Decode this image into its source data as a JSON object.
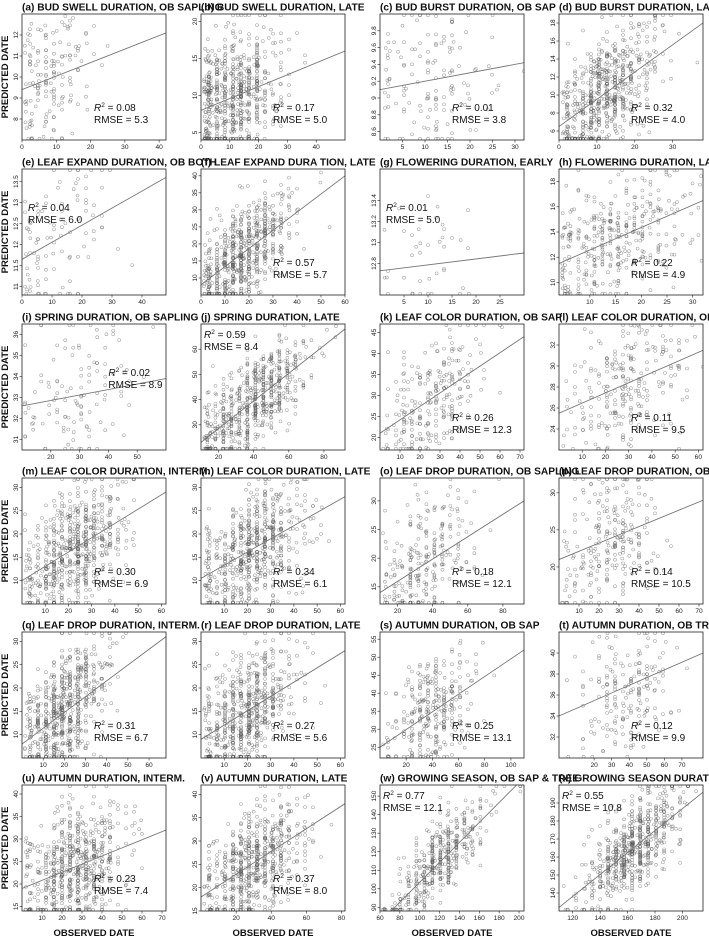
{
  "figure": {
    "ylabel": "PREDICTED DATE",
    "xlabel": "OBSERVED DATE"
  },
  "chart_data": [
    {
      "id": "a",
      "type": "scatter",
      "title": "(a) BUD SWELL DURATION, OB SAPLING",
      "xlim": [
        0,
        42
      ],
      "ylim": [
        7,
        13
      ],
      "xticks": [
        0,
        10,
        20,
        30,
        40
      ],
      "yticks": [
        8,
        9,
        10,
        11,
        12
      ],
      "r2": "0.08",
      "rmse": "RMSE = 5.3",
      "stat_pos": "bottom-right",
      "trend": [
        [
          0,
          9.4
        ],
        [
          42,
          12.1
        ]
      ],
      "cloud": {
        "n": 160,
        "xc": 8,
        "xs": 6,
        "cor": 0.35
      }
    },
    {
      "id": "b",
      "type": "scatter",
      "title": "(b) BUD SWELL DURATION, LATE",
      "xlim": [
        0,
        50
      ],
      "ylim": [
        4,
        21
      ],
      "xticks": [
        0,
        10,
        20,
        30,
        40
      ],
      "yticks": [
        5,
        10,
        15,
        20
      ],
      "r2": "0.17",
      "rmse": "RMSE = 5.0",
      "stat_pos": "bottom-right",
      "trend": [
        [
          0,
          8.0
        ],
        [
          50,
          16.0
        ]
      ],
      "cloud": {
        "n": 650,
        "xc": 12,
        "xs": 8,
        "cor": 0.4
      }
    },
    {
      "id": "c",
      "type": "scatter",
      "title": "(c) BUD BURST DURATION, OB SAP",
      "xlim": [
        0,
        32
      ],
      "ylim": [
        8.5,
        10
      ],
      "xticks": [
        5,
        10,
        15,
        20,
        25,
        30
      ],
      "yticks": [
        8.6,
        8.8,
        9.0,
        9.2,
        9.4,
        9.6,
        9.8
      ],
      "r2": "0.01",
      "rmse": "RMSE = 3.8",
      "stat_pos": "bottom-right",
      "trend": [
        [
          0,
          9.1
        ],
        [
          32,
          9.42
        ]
      ],
      "cloud": {
        "n": 140,
        "xc": 12,
        "xs": 7,
        "cor": 0.1
      }
    },
    {
      "id": "d",
      "type": "scatter",
      "title": "(d) BUD BURST DURATION, LATE",
      "xlim": [
        0,
        38
      ],
      "ylim": [
        5,
        19
      ],
      "xticks": [
        0,
        10,
        20,
        30
      ],
      "yticks": [
        6,
        8,
        10,
        12,
        14,
        16,
        18
      ],
      "r2": "0.32",
      "rmse": "RMSE = 4.0",
      "stat_pos": "bottom-right",
      "trend": [
        [
          0,
          6.5
        ],
        [
          38,
          18.0
        ]
      ],
      "cloud": {
        "n": 650,
        "xc": 12,
        "xs": 7,
        "cor": 0.55
      }
    },
    {
      "id": "e",
      "type": "scatter",
      "title": "(e) LEAF EXPAND DURATION, OB BOTH",
      "xlim": [
        0,
        48
      ],
      "ylim": [
        10.8,
        13.8
      ],
      "xticks": [
        0,
        10,
        20,
        30,
        40
      ],
      "yticks": [
        11.0,
        11.5,
        12.0,
        12.5,
        13.0,
        13.5
      ],
      "r2": "0.04",
      "rmse": "RMSE = 6.0",
      "stat_pos": "middle-left",
      "trend": [
        [
          0,
          11.65
        ],
        [
          48,
          13.6
        ]
      ],
      "cloud": {
        "n": 100,
        "xc": 12,
        "xs": 8,
        "cor": 0.2
      }
    },
    {
      "id": "f",
      "type": "scatter",
      "title": "(f) LEAF EXPAND DURA  TION, LATE",
      "xlim": [
        0,
        60
      ],
      "ylim": [
        5,
        42
      ],
      "xticks": [
        0,
        10,
        20,
        30,
        40,
        50,
        60
      ],
      "yticks": [
        10,
        15,
        20,
        25,
        30,
        35,
        40
      ],
      "r2": "0.57",
      "rmse": "RMSE = 5.7",
      "stat_pos": "bottom-right",
      "trend": [
        [
          0,
          8
        ],
        [
          60,
          40
        ]
      ],
      "cloud": {
        "n": 650,
        "xc": 18,
        "xs": 10,
        "cor": 0.75
      }
    },
    {
      "id": "g",
      "type": "scatter",
      "title": "(g) FLOWERING DURATION, EARLY",
      "xlim": [
        0,
        30
      ],
      "ylim": [
        12.5,
        13.7
      ],
      "xticks": [
        5,
        10,
        15,
        20,
        25
      ],
      "yticks": [
        12.8,
        13.0,
        13.2,
        13.4
      ],
      "r2": "0.01",
      "rmse": "RMSE = 5.0",
      "stat_pos": "middle-left",
      "trend": [
        [
          0,
          12.73
        ],
        [
          30,
          12.9
        ]
      ],
      "cloud": {
        "n": 40,
        "xc": 12,
        "xs": 6,
        "cor": 0.1
      }
    },
    {
      "id": "h",
      "type": "scatter",
      "title": "(h) FLOWERING DURATION, LATE",
      "xlim": [
        4,
        32
      ],
      "ylim": [
        9,
        19
      ],
      "xticks": [
        10,
        15,
        20,
        25,
        30
      ],
      "yticks": [
        10,
        12,
        14,
        16,
        18
      ],
      "r2": "0.22",
      "rmse": "RMSE = 4.9",
      "stat_pos": "bottom-right",
      "trend": [
        [
          4,
          11.5
        ],
        [
          32,
          16.5
        ]
      ],
      "cloud": {
        "n": 380,
        "xc": 15,
        "xs": 7,
        "cor": 0.45
      }
    },
    {
      "id": "i",
      "type": "scatter",
      "title": "(i) SPRING DURATION, OB SAPLING",
      "xlim": [
        10,
        60
      ],
      "ylim": [
        30.5,
        36.5
      ],
      "xticks": [
        20,
        30,
        40,
        50
      ],
      "yticks": [
        31,
        32,
        33,
        34,
        35,
        36
      ],
      "r2": "0.02",
      "rmse": "RMSE = 8.9",
      "stat_pos": "middle-right",
      "trend": [
        [
          10,
          32.6
        ],
        [
          60,
          33.9
        ]
      ],
      "cloud": {
        "n": 120,
        "xc": 30,
        "xs": 10,
        "cor": 0.15
      }
    },
    {
      "id": "j",
      "type": "scatter",
      "title": "(j) SPRING DURATION, LATE",
      "xlim": [
        10,
        92
      ],
      "ylim": [
        20,
        70
      ],
      "xticks": [
        20,
        40,
        60,
        80
      ],
      "yticks": [
        30,
        40,
        50,
        60
      ],
      "r2": "0.59",
      "rmse": "RMSE = 8.4",
      "stat_pos": "top-left",
      "trend": [
        [
          10,
          23
        ],
        [
          92,
          68
        ]
      ],
      "cloud": {
        "n": 650,
        "xc": 40,
        "xs": 16,
        "cor": 0.78
      }
    },
    {
      "id": "k",
      "type": "scatter",
      "title": "(k) LEAF COLOR DURATION, OB SAP",
      "xlim": [
        0,
        72
      ],
      "ylim": [
        17,
        47
      ],
      "xticks": [
        10,
        20,
        30,
        40,
        50,
        60,
        70
      ],
      "yticks": [
        20,
        25,
        30,
        35,
        40,
        45
      ],
      "r2": "0.26",
      "rmse": "RMSE = 12.3",
      "stat_pos": "bottom-right",
      "trend": [
        [
          0,
          21
        ],
        [
          72,
          44
        ]
      ],
      "cloud": {
        "n": 260,
        "xc": 25,
        "xs": 12,
        "cor": 0.5
      }
    },
    {
      "id": "l",
      "type": "scatter",
      "title": "(l) LEAF COLOR DURATION, OB TREE",
      "xlim": [
        0,
        62
      ],
      "ylim": [
        22,
        34
      ],
      "xticks": [
        10,
        20,
        30,
        40,
        50,
        60
      ],
      "yticks": [
        24,
        26,
        28,
        30,
        32
      ],
      "r2": "0.11",
      "rmse": "RMSE = 9.5",
      "stat_pos": "bottom-right",
      "trend": [
        [
          0,
          25.5
        ],
        [
          62,
          31.5
        ]
      ],
      "cloud": {
        "n": 260,
        "xc": 28,
        "xs": 12,
        "cor": 0.33
      }
    },
    {
      "id": "m",
      "type": "scatter",
      "title": "(m) LEAF COLOR DURATION, INTERM.",
      "xlim": [
        0,
        62
      ],
      "ylim": [
        5,
        32
      ],
      "xticks": [
        10,
        20,
        30,
        40,
        50,
        60
      ],
      "yticks": [
        10,
        15,
        20,
        25,
        30
      ],
      "r2": "0.30",
      "rmse": "RMSE = 6.9",
      "stat_pos": "bottom-right",
      "trend": [
        [
          0,
          10
        ],
        [
          62,
          29
        ]
      ],
      "cloud": {
        "n": 650,
        "xc": 22,
        "xs": 11,
        "cor": 0.55
      }
    },
    {
      "id": "n",
      "type": "scatter",
      "title": "(n) LEAF COLOR DURATION, LATE",
      "xlim": [
        0,
        62
      ],
      "ylim": [
        5,
        32
      ],
      "xticks": [
        10,
        20,
        30,
        40,
        50,
        60
      ],
      "yticks": [
        10,
        15,
        20,
        25,
        30
      ],
      "r2": "0.34",
      "rmse": "RMSE = 6.1",
      "stat_pos": "bottom-right",
      "trend": [
        [
          0,
          10.5
        ],
        [
          62,
          28
        ]
      ],
      "cloud": {
        "n": 650,
        "xc": 22,
        "xs": 11,
        "cor": 0.58
      }
    },
    {
      "id": "o",
      "type": "scatter",
      "title": "(o) LEAF DROP DURATION, OB SAPLING",
      "xlim": [
        10,
        92
      ],
      "ylim": [
        12,
        34
      ],
      "xticks": [
        20,
        40,
        60,
        80
      ],
      "yticks": [
        15,
        20,
        25,
        30
      ],
      "r2": "0.18",
      "rmse": "RMSE = 12.1",
      "stat_pos": "bottom-right",
      "trend": [
        [
          10,
          14
        ],
        [
          92,
          30
        ]
      ],
      "cloud": {
        "n": 260,
        "xc": 35,
        "xs": 14,
        "cor": 0.42
      }
    },
    {
      "id": "p",
      "type": "scatter",
      "title": "(p) LEAF DROP DURATION, OB TREE",
      "xlim": [
        0,
        72
      ],
      "ylim": [
        15,
        32
      ],
      "xticks": [
        10,
        20,
        30,
        40,
        50,
        60,
        70
      ],
      "yticks": [
        20,
        25,
        30
      ],
      "r2": "0.14",
      "rmse": "RMSE = 10.5",
      "stat_pos": "bottom-right",
      "trend": [
        [
          0,
          21
        ],
        [
          72,
          29
        ]
      ],
      "cloud": {
        "n": 260,
        "xc": 25,
        "xs": 12,
        "cor": 0.38
      }
    },
    {
      "id": "q",
      "type": "scatter",
      "title": "(q) LEAF DROP DURATION, INTERM.",
      "xlim": [
        0,
        68
      ],
      "ylim": [
        5,
        32
      ],
      "xticks": [
        10,
        20,
        30,
        40,
        50,
        60
      ],
      "yticks": [
        10,
        15,
        20,
        25,
        30
      ],
      "r2": "0.31",
      "rmse": "RMSE = 6.7",
      "stat_pos": "bottom-right",
      "trend": [
        [
          0,
          8
        ],
        [
          68,
          31
        ]
      ],
      "cloud": {
        "n": 650,
        "xc": 20,
        "xs": 10,
        "cor": 0.56
      }
    },
    {
      "id": "r",
      "type": "scatter",
      "title": "(r) LEAF DROP DURATION, LATE",
      "xlim": [
        0,
        62
      ],
      "ylim": [
        5,
        32
      ],
      "xticks": [
        10,
        20,
        30,
        40,
        50,
        60
      ],
      "yticks": [
        10,
        15,
        20,
        25,
        30
      ],
      "r2": "0.27",
      "rmse": "RMSE = 5.6",
      "stat_pos": "bottom-right",
      "trend": [
        [
          0,
          9
        ],
        [
          62,
          28
        ]
      ],
      "cloud": {
        "n": 650,
        "xc": 20,
        "xs": 10,
        "cor": 0.52
      }
    },
    {
      "id": "s",
      "type": "scatter",
      "title": "(s) AUTUMN DURATION, OB SAP",
      "xlim": [
        0,
        110
      ],
      "ylim": [
        22,
        57
      ],
      "xticks": [
        20,
        40,
        60,
        80,
        100
      ],
      "yticks": [
        25,
        30,
        35,
        40,
        45,
        50,
        55
      ],
      "r2": "0.25",
      "rmse": "RMSE = 13.1",
      "stat_pos": "bottom-right",
      "trend": [
        [
          0,
          25
        ],
        [
          110,
          52
        ]
      ],
      "cloud": {
        "n": 320,
        "xc": 40,
        "xs": 16,
        "cor": 0.5
      }
    },
    {
      "id": "t",
      "type": "scatter",
      "title": "(t) AUTUMN DURATION, OB TREE",
      "xlim": [
        0,
        82
      ],
      "ylim": [
        30,
        42
      ],
      "xticks": [
        20,
        30,
        40,
        50,
        60,
        70
      ],
      "yticks": [
        32,
        34,
        36,
        38,
        40
      ],
      "r2": "0.12",
      "rmse": "RMSE = 9.9",
      "stat_pos": "bottom-right",
      "trend": [
        [
          0,
          34
        ],
        [
          82,
          40
        ]
      ],
      "cloud": {
        "n": 200,
        "xc": 40,
        "xs": 14,
        "cor": 0.35
      }
    },
    {
      "id": "u",
      "type": "scatter",
      "title": "(u) AUTUMN DURATION, INTERM.",
      "xlim": [
        0,
        72
      ],
      "ylim": [
        14,
        42
      ],
      "xticks": [
        10,
        20,
        30,
        40,
        50,
        60,
        70
      ],
      "yticks": [
        15,
        20,
        25,
        30,
        35,
        40
      ],
      "r2": "0.23",
      "rmse": "RMSE = 7.4",
      "stat_pos": "bottom-right",
      "trend": [
        [
          0,
          19
        ],
        [
          72,
          32
        ]
      ],
      "cloud": {
        "n": 650,
        "xc": 25,
        "xs": 12,
        "cor": 0.48
      }
    },
    {
      "id": "v",
      "type": "scatter",
      "title": "(v) AUTUMN DURATION, LATE",
      "xlim": [
        0,
        82
      ],
      "ylim": [
        15,
        42
      ],
      "xticks": [
        20,
        40,
        60,
        80
      ],
      "yticks": [
        15,
        20,
        25,
        30,
        35,
        40
      ],
      "r2": "0.37",
      "rmse": "RMSE = 8.0",
      "stat_pos": "bottom-right",
      "trend": [
        [
          0,
          18
        ],
        [
          82,
          38
        ]
      ],
      "cloud": {
        "n": 650,
        "xc": 30,
        "xs": 14,
        "cor": 0.6
      }
    },
    {
      "id": "w",
      "type": "scatter",
      "title": "(w) GROWING SEASON, OB SAP & TREE",
      "xlim": [
        60,
        205
      ],
      "ylim": [
        88,
        156
      ],
      "xticks": [
        60,
        80,
        100,
        120,
        140,
        160,
        180,
        200
      ],
      "yticks": [
        90,
        100,
        110,
        120,
        130,
        140,
        150
      ],
      "r2": "0.77",
      "rmse": "RMSE = 12.1",
      "stat_pos": "top-left",
      "trend": [
        [
          60,
          82
        ],
        [
          205,
          160
        ]
      ],
      "cloud": {
        "n": 450,
        "xc": 120,
        "xs": 25,
        "cor": 0.85
      }
    },
    {
      "id": "x",
      "type": "scatter",
      "title": "(x) GROWING SEASON DURATION, LATE",
      "xlim": [
        110,
        215
      ],
      "ylim": [
        130,
        200
      ],
      "xticks": [
        120,
        140,
        160,
        180,
        200
      ],
      "yticks": [
        140,
        150,
        160,
        170,
        180,
        190
      ],
      "r2": "0.55",
      "rmse": "RMSE = 10.8",
      "stat_pos": "top-left",
      "trend": [
        [
          110,
          132
        ],
        [
          215,
          196
        ]
      ],
      "cloud": {
        "n": 650,
        "xc": 165,
        "xs": 18,
        "cor": 0.74
      }
    }
  ]
}
